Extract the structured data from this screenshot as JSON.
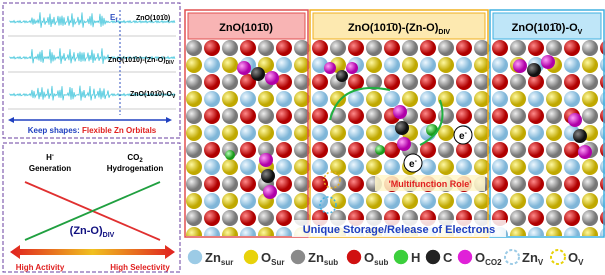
{
  "left_top": {
    "ef": {
      "text": "E",
      "sub": "f"
    },
    "dos_labels": [
      {
        "text": "ZnO(101̄0)"
      },
      {
        "text": "ZnO(101̄0)-(Zn-O)",
        "sub": "DIV"
      },
      {
        "text": "ZnO(101̄0)-O",
        "sub": "V"
      }
    ],
    "caption_a": "Keep shapes:",
    "caption_b": "Flexible Zn Orbitals"
  },
  "left_bottom": {
    "h_gen": {
      "text": "H",
      "sup": "-",
      "line2": "Generation"
    },
    "co2_hyd": {
      "text": "CO",
      "sub": "2",
      "line2": "Hydrogenation"
    },
    "center": {
      "text": "(Zn-O)",
      "sub": "DIV"
    },
    "high_activity": "High Activity",
    "high_selectivity": "High Selectivity"
  },
  "panels": [
    {
      "text": "ZnO(101̄0)"
    },
    {
      "text": "ZnO(101̄0)-(Zn-O)",
      "sub": "DIV"
    },
    {
      "text": "ZnO(101̄0)-O",
      "sub": "V"
    }
  ],
  "electron": {
    "text": "e",
    "sup": "-"
  },
  "multifunction": "'Multifunction Role'",
  "storage": "Unique Storage/Release of Electrons",
  "legend": [
    {
      "text": "Zn",
      "sub": "sur",
      "color": "#9ccbe6"
    },
    {
      "text": "O",
      "sub": "Sur",
      "color": "#e8d20a"
    },
    {
      "text": "Zn",
      "sub": "sub",
      "color": "#8a8a8a"
    },
    {
      "text": "O",
      "sub": "sub",
      "color": "#d01010"
    },
    {
      "text": "H",
      "color": "#3ccf3c"
    },
    {
      "text": "C",
      "color": "#222222"
    },
    {
      "text": "O",
      "sub": "CO2",
      "color": "#e020d8"
    },
    {
      "text": "Zn",
      "sub": "V",
      "color": "#9ccbe6",
      "dashed": true
    },
    {
      "text": "O",
      "sub": "V",
      "color": "#e8d20a",
      "dashed": true
    }
  ]
}
